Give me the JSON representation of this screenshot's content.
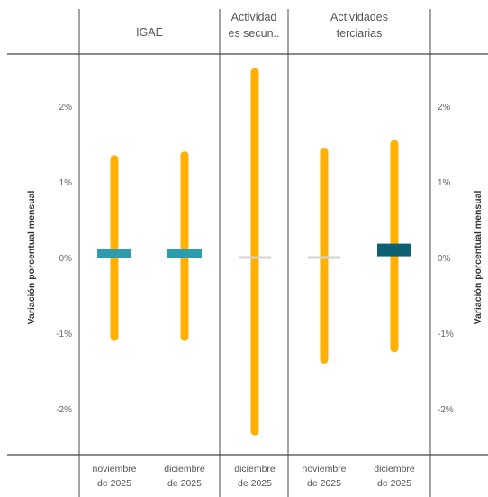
{
  "chart_data": {
    "type": "range-bar",
    "ylabel": "Variación porcentual mensual",
    "ylim": [
      -2.55,
      2.7
    ],
    "yticks": [
      -2,
      -1,
      0,
      1,
      2
    ],
    "ytick_labels": [
      "-2%",
      "-1%",
      "0%",
      "1%",
      "2%"
    ],
    "right_axis": {
      "ylabel": "Variación porcentual mensual",
      "ytick_labels": [
        "-2%",
        "-1%",
        "0%",
        "1%",
        "2%"
      ]
    },
    "colors": {
      "interval": "#ffb000",
      "teal": "#2e9cad",
      "dark_teal": "#0d5f73",
      "gray": "#d3d3d3"
    },
    "panels": [
      {
        "title": [
          "IGAE"
        ],
        "columns": [
          {
            "label": [
              "noviembre",
              "de 2025"
            ],
            "interval": [
              -1.05,
              1.3
            ],
            "estimate": 0.05,
            "color": "#2e9cad"
          },
          {
            "label": [
              "diciembre",
              "de 2025"
            ],
            "interval": [
              -1.05,
              1.35
            ],
            "estimate": 0.05,
            "color": "#2e9cad"
          }
        ]
      },
      {
        "title": [
          "Actividad",
          "es secun.."
        ],
        "columns": [
          {
            "label": [
              "diciembre",
              "de 2025"
            ],
            "interval": [
              -2.3,
              2.45
            ],
            "estimate": 0.0,
            "color": "#d3d3d3"
          }
        ]
      },
      {
        "title": [
          "Actividades",
          "terciarias"
        ],
        "columns": [
          {
            "label": [
              "noviembre",
              "de 2025"
            ],
            "interval": [
              -1.35,
              1.4
            ],
            "estimate": 0.0,
            "color": "#d3d3d3"
          },
          {
            "label": [
              "diciembre",
              "de 2025"
            ],
            "interval": [
              -1.2,
              1.5
            ],
            "estimate": 0.1,
            "color": "#0d5f73"
          }
        ]
      }
    ]
  }
}
